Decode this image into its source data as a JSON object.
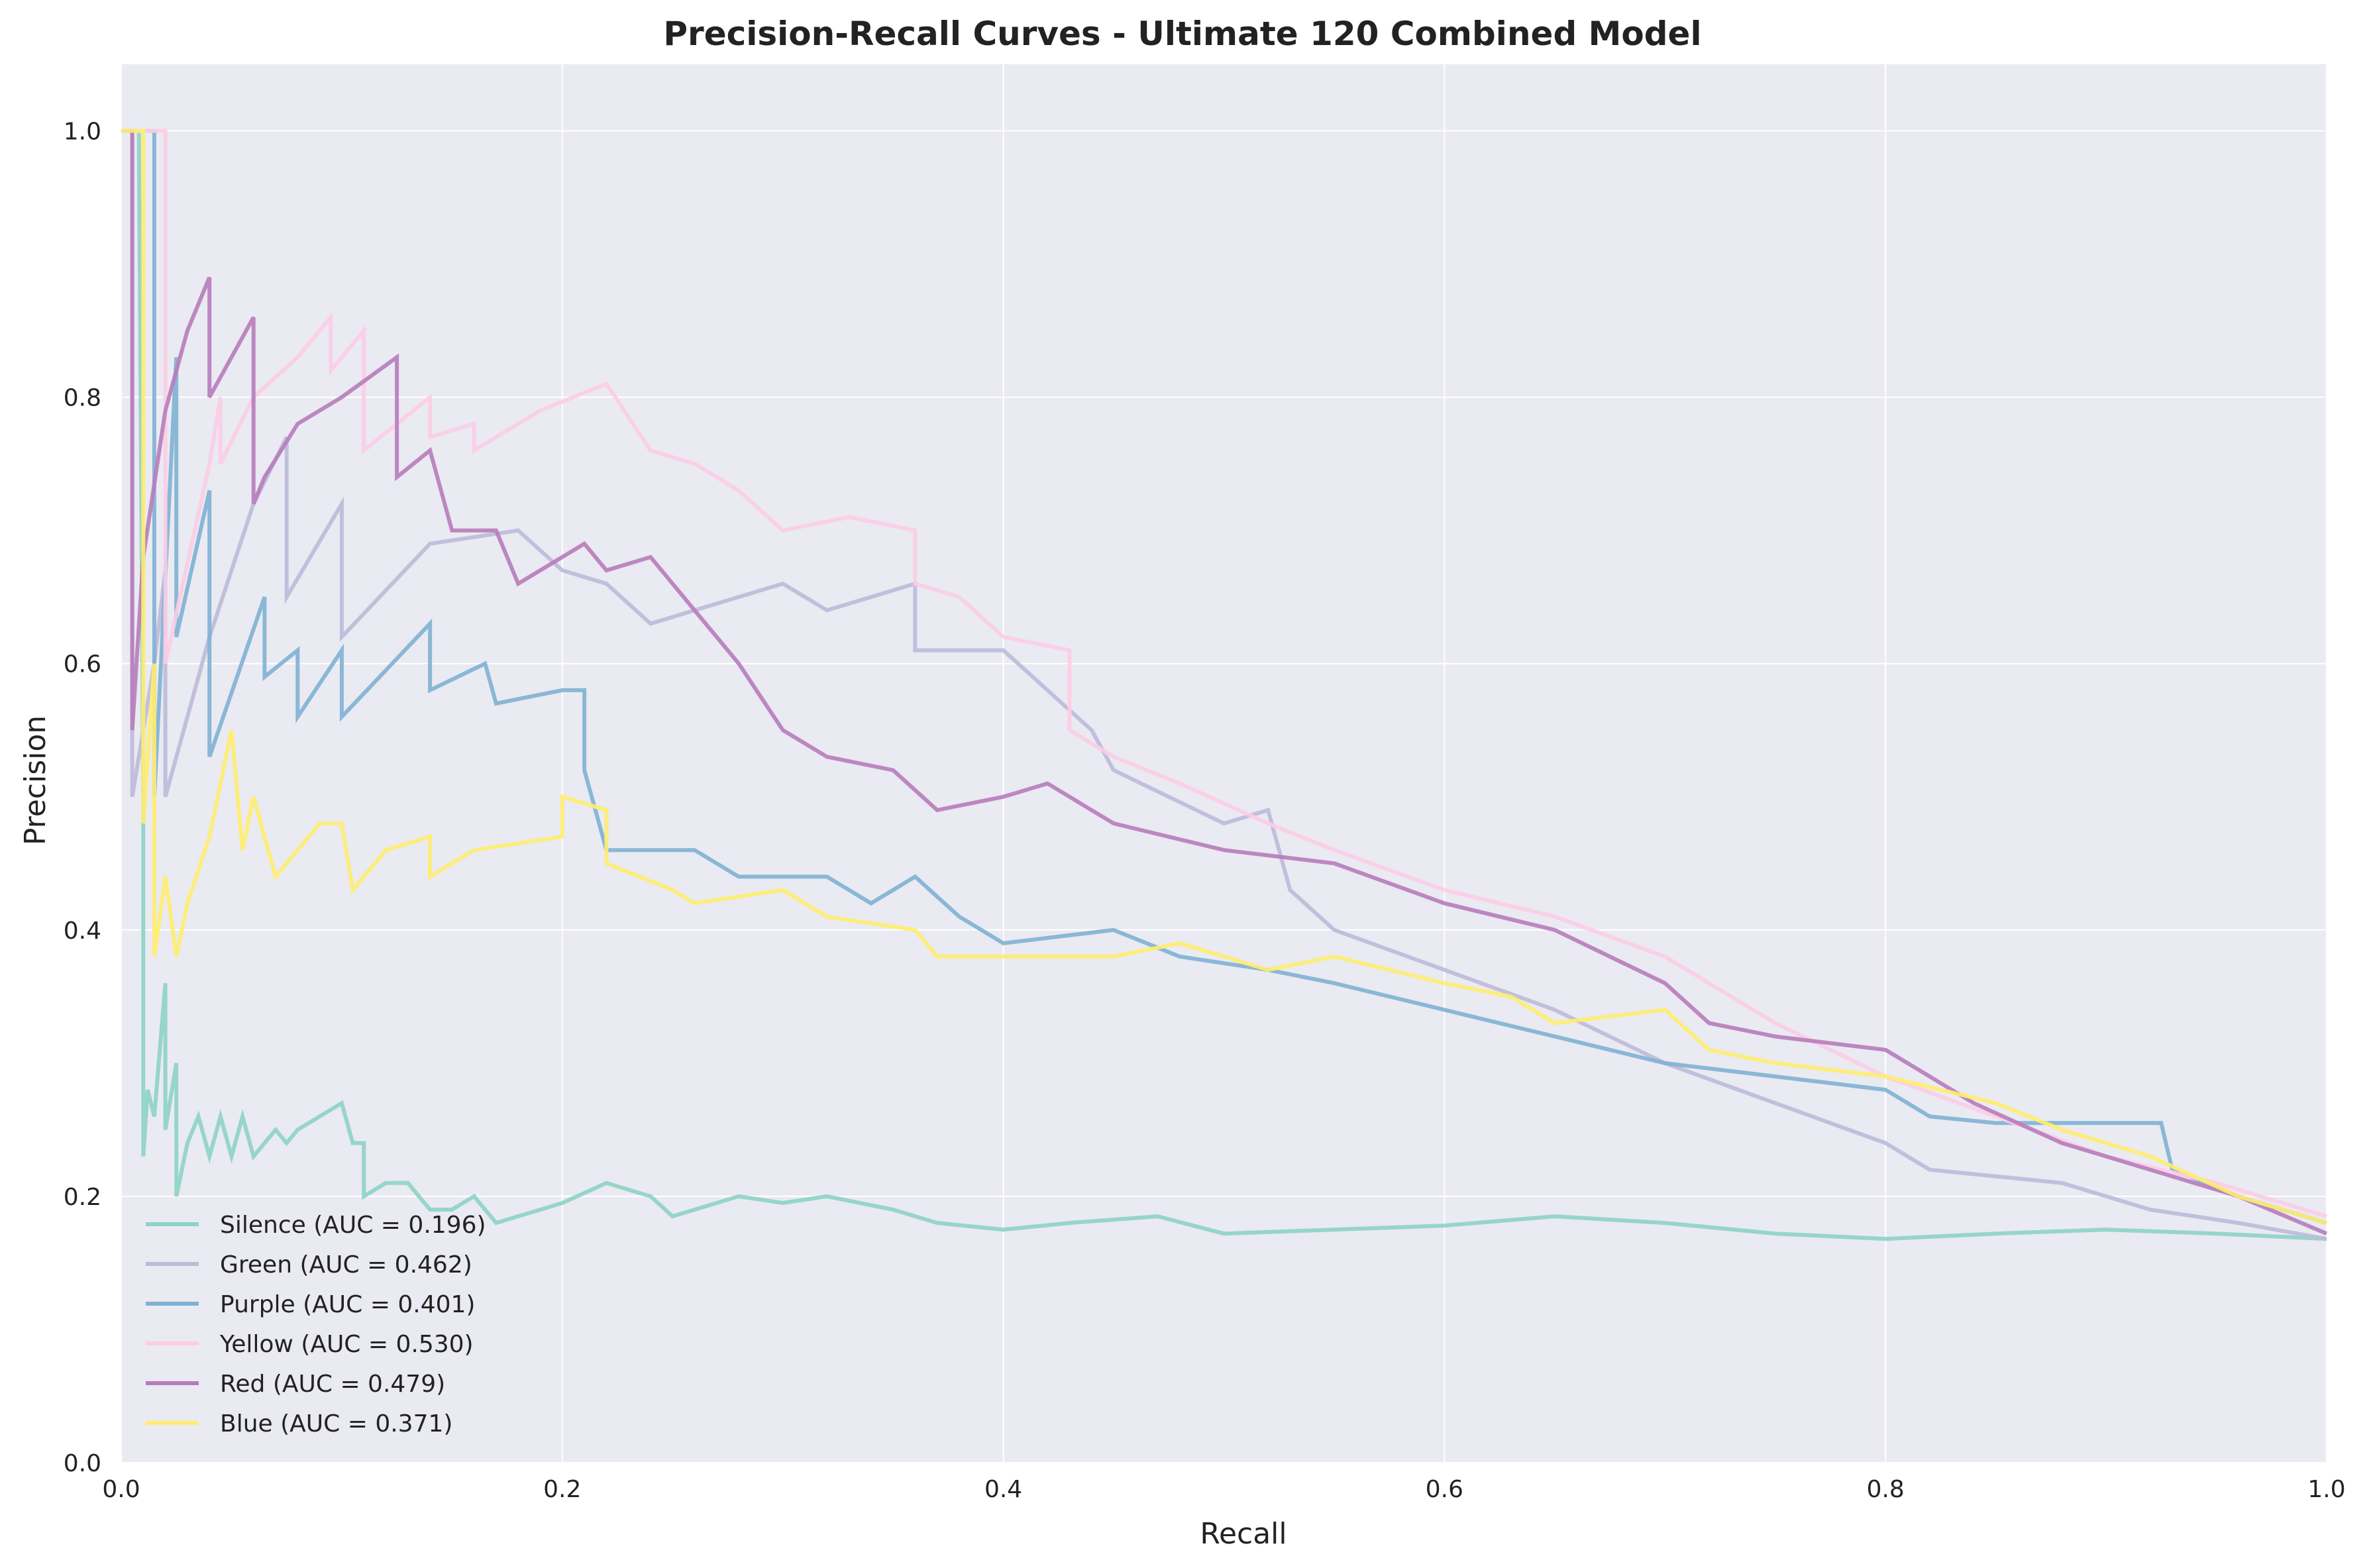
{
  "chart_data": {
    "type": "line",
    "title": "Precision-Recall Curves - Ultimate 120 Combined Model",
    "xlabel": "Recall",
    "ylabel": "Precision",
    "xlim": [
      0,
      1.0
    ],
    "ylim": [
      0,
      1.05
    ],
    "xticks": [
      0.0,
      0.2,
      0.4,
      0.6,
      0.8,
      1.0
    ],
    "yticks": [
      0.0,
      0.2,
      0.4,
      0.6,
      0.8,
      1.0
    ],
    "xtick_labels": [
      "0.0",
      "0.2",
      "0.4",
      "0.6",
      "0.8",
      "1.0"
    ],
    "ytick_labels": [
      "0.0",
      "0.2",
      "0.4",
      "0.6",
      "0.8",
      "1.0"
    ],
    "grid": true,
    "legend_position": "lower-left",
    "background_color": "#eaeaf2",
    "series": [
      {
        "name": "Silence (AUC = 0.196)",
        "color": "#8dd3c7",
        "points": [
          [
            0.0,
            1.0
          ],
          [
            0.008,
            1.0
          ],
          [
            0.01,
            0.5
          ],
          [
            0.01,
            0.23
          ],
          [
            0.012,
            0.28
          ],
          [
            0.015,
            0.26
          ],
          [
            0.02,
            0.36
          ],
          [
            0.02,
            0.25
          ],
          [
            0.025,
            0.3
          ],
          [
            0.025,
            0.2
          ],
          [
            0.03,
            0.24
          ],
          [
            0.035,
            0.26
          ],
          [
            0.04,
            0.23
          ],
          [
            0.045,
            0.26
          ],
          [
            0.05,
            0.23
          ],
          [
            0.055,
            0.26
          ],
          [
            0.06,
            0.23
          ],
          [
            0.07,
            0.25
          ],
          [
            0.075,
            0.24
          ],
          [
            0.08,
            0.25
          ],
          [
            0.09,
            0.26
          ],
          [
            0.1,
            0.27
          ],
          [
            0.105,
            0.24
          ],
          [
            0.11,
            0.24
          ],
          [
            0.11,
            0.2
          ],
          [
            0.12,
            0.21
          ],
          [
            0.13,
            0.21
          ],
          [
            0.14,
            0.19
          ],
          [
            0.15,
            0.19
          ],
          [
            0.16,
            0.2
          ],
          [
            0.17,
            0.18
          ],
          [
            0.2,
            0.195
          ],
          [
            0.22,
            0.21
          ],
          [
            0.24,
            0.2
          ],
          [
            0.25,
            0.185
          ],
          [
            0.28,
            0.2
          ],
          [
            0.3,
            0.195
          ],
          [
            0.32,
            0.2
          ],
          [
            0.35,
            0.19
          ],
          [
            0.37,
            0.18
          ],
          [
            0.4,
            0.175
          ],
          [
            0.43,
            0.18
          ],
          [
            0.47,
            0.185
          ],
          [
            0.5,
            0.172
          ],
          [
            0.55,
            0.175
          ],
          [
            0.6,
            0.178
          ],
          [
            0.65,
            0.185
          ],
          [
            0.7,
            0.18
          ],
          [
            0.75,
            0.172
          ],
          [
            0.8,
            0.168
          ],
          [
            0.85,
            0.172
          ],
          [
            0.9,
            0.175
          ],
          [
            0.95,
            0.172
          ],
          [
            1.0,
            0.168
          ]
        ]
      },
      {
        "name": "Green (AUC = 0.462)",
        "color": "#bebada",
        "points": [
          [
            0.0,
            1.0
          ],
          [
            0.005,
            1.0
          ],
          [
            0.005,
            0.5
          ],
          [
            0.015,
            0.6
          ],
          [
            0.02,
            0.67
          ],
          [
            0.02,
            0.5
          ],
          [
            0.04,
            0.62
          ],
          [
            0.06,
            0.72
          ],
          [
            0.075,
            0.77
          ],
          [
            0.075,
            0.65
          ],
          [
            0.1,
            0.72
          ],
          [
            0.1,
            0.62
          ],
          [
            0.14,
            0.69
          ],
          [
            0.18,
            0.7
          ],
          [
            0.2,
            0.67
          ],
          [
            0.22,
            0.66
          ],
          [
            0.24,
            0.63
          ],
          [
            0.3,
            0.66
          ],
          [
            0.32,
            0.64
          ],
          [
            0.36,
            0.66
          ],
          [
            0.36,
            0.61
          ],
          [
            0.4,
            0.61
          ],
          [
            0.44,
            0.55
          ],
          [
            0.45,
            0.52
          ],
          [
            0.5,
            0.48
          ],
          [
            0.52,
            0.49
          ],
          [
            0.53,
            0.43
          ],
          [
            0.55,
            0.4
          ],
          [
            0.6,
            0.37
          ],
          [
            0.65,
            0.34
          ],
          [
            0.7,
            0.3
          ],
          [
            0.75,
            0.27
          ],
          [
            0.8,
            0.24
          ],
          [
            0.82,
            0.22
          ],
          [
            0.88,
            0.21
          ],
          [
            0.92,
            0.19
          ],
          [
            0.96,
            0.18
          ],
          [
            1.0,
            0.168
          ]
        ]
      },
      {
        "name": "Purple (AUC = 0.401)",
        "color": "#80b1d3",
        "points": [
          [
            0.0,
            1.0
          ],
          [
            0.01,
            1.0
          ],
          [
            0.015,
            1.0
          ],
          [
            0.015,
            0.5
          ],
          [
            0.025,
            0.83
          ],
          [
            0.025,
            0.62
          ],
          [
            0.04,
            0.73
          ],
          [
            0.04,
            0.53
          ],
          [
            0.065,
            0.65
          ],
          [
            0.065,
            0.59
          ],
          [
            0.08,
            0.61
          ],
          [
            0.08,
            0.56
          ],
          [
            0.1,
            0.61
          ],
          [
            0.1,
            0.56
          ],
          [
            0.14,
            0.63
          ],
          [
            0.14,
            0.58
          ],
          [
            0.165,
            0.6
          ],
          [
            0.17,
            0.57
          ],
          [
            0.2,
            0.58
          ],
          [
            0.21,
            0.58
          ],
          [
            0.21,
            0.52
          ],
          [
            0.22,
            0.46
          ],
          [
            0.26,
            0.46
          ],
          [
            0.28,
            0.44
          ],
          [
            0.32,
            0.44
          ],
          [
            0.34,
            0.42
          ],
          [
            0.36,
            0.44
          ],
          [
            0.38,
            0.41
          ],
          [
            0.4,
            0.39
          ],
          [
            0.45,
            0.4
          ],
          [
            0.48,
            0.38
          ],
          [
            0.52,
            0.37
          ],
          [
            0.55,
            0.36
          ],
          [
            0.6,
            0.34
          ],
          [
            0.65,
            0.32
          ],
          [
            0.7,
            0.3
          ],
          [
            0.75,
            0.29
          ],
          [
            0.8,
            0.28
          ],
          [
            0.82,
            0.26
          ],
          [
            0.85,
            0.255
          ],
          [
            0.9,
            0.255
          ],
          [
            0.925,
            0.255
          ],
          [
            0.93,
            0.22
          ],
          [
            0.96,
            0.2
          ],
          [
            0.98,
            0.19
          ],
          [
            1.0,
            0.18
          ]
        ]
      },
      {
        "name": "Yellow (AUC = 0.530)",
        "color": "#fccde5",
        "points": [
          [
            0.0,
            1.0
          ],
          [
            0.02,
            1.0
          ],
          [
            0.02,
            0.6
          ],
          [
            0.04,
            0.75
          ],
          [
            0.045,
            0.8
          ],
          [
            0.045,
            0.75
          ],
          [
            0.06,
            0.8
          ],
          [
            0.08,
            0.83
          ],
          [
            0.095,
            0.86
          ],
          [
            0.095,
            0.82
          ],
          [
            0.11,
            0.85
          ],
          [
            0.11,
            0.76
          ],
          [
            0.14,
            0.8
          ],
          [
            0.14,
            0.77
          ],
          [
            0.16,
            0.78
          ],
          [
            0.16,
            0.76
          ],
          [
            0.19,
            0.79
          ],
          [
            0.22,
            0.81
          ],
          [
            0.24,
            0.76
          ],
          [
            0.26,
            0.75
          ],
          [
            0.28,
            0.73
          ],
          [
            0.3,
            0.7
          ],
          [
            0.33,
            0.71
          ],
          [
            0.36,
            0.7
          ],
          [
            0.36,
            0.66
          ],
          [
            0.38,
            0.65
          ],
          [
            0.4,
            0.62
          ],
          [
            0.43,
            0.61
          ],
          [
            0.43,
            0.55
          ],
          [
            0.45,
            0.53
          ],
          [
            0.48,
            0.51
          ],
          [
            0.52,
            0.48
          ],
          [
            0.55,
            0.46
          ],
          [
            0.6,
            0.43
          ],
          [
            0.65,
            0.41
          ],
          [
            0.7,
            0.38
          ],
          [
            0.75,
            0.33
          ],
          [
            0.8,
            0.29
          ],
          [
            0.85,
            0.26
          ],
          [
            0.9,
            0.23
          ],
          [
            0.95,
            0.21
          ],
          [
            1.0,
            0.185
          ]
        ]
      },
      {
        "name": "Red (AUC = 0.479)",
        "color": "#b77cbb",
        "points": [
          [
            0.0,
            1.0
          ],
          [
            0.005,
            1.0
          ],
          [
            0.005,
            0.55
          ],
          [
            0.01,
            0.68
          ],
          [
            0.02,
            0.79
          ],
          [
            0.03,
            0.85
          ],
          [
            0.04,
            0.89
          ],
          [
            0.04,
            0.8
          ],
          [
            0.06,
            0.86
          ],
          [
            0.06,
            0.72
          ],
          [
            0.065,
            0.74
          ],
          [
            0.08,
            0.78
          ],
          [
            0.1,
            0.8
          ],
          [
            0.125,
            0.83
          ],
          [
            0.125,
            0.74
          ],
          [
            0.14,
            0.76
          ],
          [
            0.15,
            0.7
          ],
          [
            0.17,
            0.7
          ],
          [
            0.18,
            0.66
          ],
          [
            0.21,
            0.69
          ],
          [
            0.22,
            0.67
          ],
          [
            0.24,
            0.68
          ],
          [
            0.26,
            0.64
          ],
          [
            0.28,
            0.6
          ],
          [
            0.3,
            0.55
          ],
          [
            0.32,
            0.53
          ],
          [
            0.35,
            0.52
          ],
          [
            0.37,
            0.49
          ],
          [
            0.4,
            0.5
          ],
          [
            0.42,
            0.51
          ],
          [
            0.43,
            0.5
          ],
          [
            0.45,
            0.48
          ],
          [
            0.5,
            0.46
          ],
          [
            0.55,
            0.45
          ],
          [
            0.6,
            0.42
          ],
          [
            0.65,
            0.4
          ],
          [
            0.7,
            0.36
          ],
          [
            0.72,
            0.33
          ],
          [
            0.75,
            0.32
          ],
          [
            0.8,
            0.31
          ],
          [
            0.84,
            0.27
          ],
          [
            0.88,
            0.24
          ],
          [
            0.92,
            0.22
          ],
          [
            0.96,
            0.2
          ],
          [
            1.0,
            0.172
          ]
        ]
      },
      {
        "name": "Blue (AUC = 0.371)",
        "color": "#ffed6f",
        "points": [
          [
            0.0,
            1.0
          ],
          [
            0.01,
            1.0
          ],
          [
            0.01,
            0.48
          ],
          [
            0.015,
            0.6
          ],
          [
            0.015,
            0.38
          ],
          [
            0.02,
            0.44
          ],
          [
            0.025,
            0.38
          ],
          [
            0.03,
            0.42
          ],
          [
            0.04,
            0.47
          ],
          [
            0.05,
            0.55
          ],
          [
            0.055,
            0.46
          ],
          [
            0.06,
            0.5
          ],
          [
            0.07,
            0.44
          ],
          [
            0.08,
            0.46
          ],
          [
            0.09,
            0.48
          ],
          [
            0.1,
            0.48
          ],
          [
            0.105,
            0.43
          ],
          [
            0.12,
            0.46
          ],
          [
            0.14,
            0.47
          ],
          [
            0.14,
            0.44
          ],
          [
            0.16,
            0.46
          ],
          [
            0.2,
            0.47
          ],
          [
            0.2,
            0.5
          ],
          [
            0.22,
            0.49
          ],
          [
            0.22,
            0.45
          ],
          [
            0.25,
            0.43
          ],
          [
            0.26,
            0.42
          ],
          [
            0.3,
            0.43
          ],
          [
            0.32,
            0.41
          ],
          [
            0.36,
            0.4
          ],
          [
            0.37,
            0.38
          ],
          [
            0.4,
            0.38
          ],
          [
            0.45,
            0.38
          ],
          [
            0.48,
            0.39
          ],
          [
            0.52,
            0.37
          ],
          [
            0.55,
            0.38
          ],
          [
            0.6,
            0.36
          ],
          [
            0.63,
            0.35
          ],
          [
            0.65,
            0.33
          ],
          [
            0.7,
            0.34
          ],
          [
            0.72,
            0.31
          ],
          [
            0.75,
            0.3
          ],
          [
            0.8,
            0.29
          ],
          [
            0.85,
            0.27
          ],
          [
            0.88,
            0.25
          ],
          [
            0.92,
            0.23
          ],
          [
            0.96,
            0.2
          ],
          [
            1.0,
            0.18
          ]
        ]
      }
    ]
  }
}
